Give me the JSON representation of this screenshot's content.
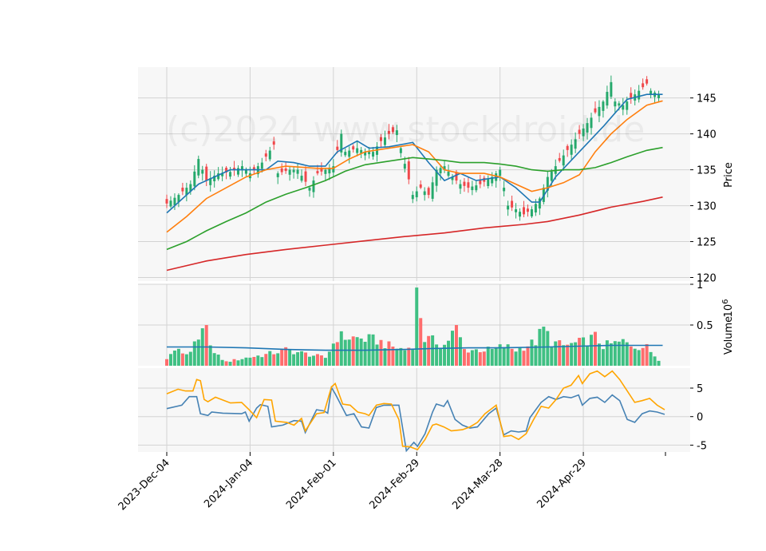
{
  "watermark": "(c)2024 www.stockdroid.de",
  "colors": {
    "up": "#26a96c",
    "down": "#f0484b",
    "up_vol": "#3fc083",
    "down_vol": "#ff6d6d",
    "ma_fast": "#1f77b4",
    "ma_orange": "#ff7f0e",
    "ma_green": "#2ca02c",
    "ma_red": "#d62728",
    "vol_ma": "#1f77b4",
    "osc_blue": "#4682b4",
    "osc_orange": "#ffa500",
    "panel_bg": "#f7f7f7",
    "grid": "#d3d3d3"
  },
  "chart_data": [
    {
      "type": "candlestick",
      "panel": "price",
      "ylabel": "Price",
      "ylim": [
        119.5,
        149.3
      ],
      "yticks": [
        120,
        125,
        130,
        135,
        140,
        145
      ],
      "x_ticks": [
        {
          "index": 0,
          "label": "2023-Dec-04"
        },
        {
          "index": 21,
          "label": "2024-Jan-04"
        },
        {
          "index": 42,
          "label": "2024-Feb-01"
        },
        {
          "index": 63,
          "label": "2024-Feb-29"
        },
        {
          "index": 84,
          "label": "2024-Mar-28"
        },
        {
          "index": 105,
          "label": "2024-Apr-29"
        }
      ],
      "grid": true,
      "ohlc": [],
      "moving_averages": [
        {
          "color": "ma_fast",
          "points": [
            [
              0,
              129
            ],
            [
              8,
              133
            ],
            [
              16,
              135
            ],
            [
              25,
              135
            ],
            [
              28,
              136.2
            ],
            [
              32,
              136
            ],
            [
              36,
              135.5
            ],
            [
              40,
              135.5
            ],
            [
              43,
              137.5
            ],
            [
              48,
              139
            ],
            [
              51,
              138
            ],
            [
              56,
              138.2
            ],
            [
              62,
              138.8
            ],
            [
              66,
              136
            ],
            [
              70,
              133.5
            ],
            [
              74,
              134.5
            ],
            [
              78,
              133.5
            ],
            [
              84,
              134
            ],
            [
              88,
              132.5
            ],
            [
              92,
              130.5
            ],
            [
              94,
              130.5
            ],
            [
              98,
              134
            ],
            [
              104,
              137.5
            ],
            [
              110,
              141
            ],
            [
              116,
              144.8
            ],
            [
              121,
              145.5
            ],
            [
              125,
              145.5
            ]
          ]
        },
        {
          "color": "ma_orange",
          "points": [
            [
              0,
              126.3
            ],
            [
              5,
              128.5
            ],
            [
              10,
              131
            ],
            [
              15,
              132.5
            ],
            [
              20,
              134
            ],
            [
              25,
              135
            ],
            [
              30,
              135.5
            ],
            [
              38,
              135.2
            ],
            [
              42,
              135.2
            ],
            [
              46,
              136.5
            ],
            [
              50,
              137.5
            ],
            [
              56,
              138
            ],
            [
              62,
              138.5
            ],
            [
              66,
              137.5
            ],
            [
              70,
              135
            ],
            [
              74,
              134.5
            ],
            [
              80,
              134.5
            ],
            [
              84,
              134
            ],
            [
              88,
              133
            ],
            [
              92,
              132
            ],
            [
              96,
              132.5
            ],
            [
              100,
              133.2
            ],
            [
              104,
              134.3
            ],
            [
              108,
              137.5
            ],
            [
              112,
              140
            ],
            [
              116,
              142
            ],
            [
              121,
              144
            ],
            [
              125,
              144.6
            ]
          ]
        },
        {
          "color": "ma_green",
          "points": [
            [
              0,
              123.9
            ],
            [
              5,
              125
            ],
            [
              10,
              126.5
            ],
            [
              15,
              127.8
            ],
            [
              20,
              129
            ],
            [
              25,
              130.5
            ],
            [
              30,
              131.6
            ],
            [
              35,
              132.5
            ],
            [
              40,
              133.5
            ],
            [
              45,
              134.8
            ],
            [
              50,
              135.7
            ],
            [
              56,
              136.2
            ],
            [
              62,
              136.7
            ],
            [
              66,
              136.5
            ],
            [
              70,
              136.3
            ],
            [
              74,
              136
            ],
            [
              80,
              136
            ],
            [
              84,
              135.8
            ],
            [
              88,
              135.5
            ],
            [
              92,
              135
            ],
            [
              96,
              134.8
            ],
            [
              100,
              135
            ],
            [
              104,
              135
            ],
            [
              108,
              135.3
            ],
            [
              112,
              136
            ],
            [
              116,
              136.8
            ],
            [
              121,
              137.7
            ],
            [
              125,
              138.1
            ]
          ]
        },
        {
          "color": "ma_red",
          "points": [
            [
              0,
              121
            ],
            [
              10,
              122.3
            ],
            [
              20,
              123.2
            ],
            [
              30,
              123.9
            ],
            [
              40,
              124.5
            ],
            [
              50,
              125.1
            ],
            [
              60,
              125.7
            ],
            [
              70,
              126.2
            ],
            [
              80,
              126.9
            ],
            [
              90,
              127.4
            ],
            [
              96,
              127.8
            ],
            [
              104,
              128.7
            ],
            [
              112,
              129.8
            ],
            [
              120,
              130.6
            ],
            [
              125,
              131.2
            ]
          ]
        }
      ]
    },
    {
      "type": "bar",
      "panel": "volume",
      "ylabel": "Volume",
      "yunit": "10^6",
      "ylim": [
        0,
        1.0
      ],
      "yticks": [
        0.5,
        1.0
      ],
      "volume": [],
      "volume_ma": [
        [
          0,
          0.23
        ],
        [
          10,
          0.23
        ],
        [
          20,
          0.22
        ],
        [
          30,
          0.2
        ],
        [
          40,
          0.19
        ],
        [
          50,
          0.19
        ],
        [
          60,
          0.2
        ],
        [
          66,
          0.21
        ],
        [
          76,
          0.22
        ],
        [
          84,
          0.22
        ],
        [
          96,
          0.23
        ],
        [
          104,
          0.24
        ],
        [
          112,
          0.25
        ],
        [
          125,
          0.25
        ]
      ]
    },
    {
      "type": "line",
      "panel": "oscillator",
      "ylim": [
        -6.2,
        8.5
      ],
      "yticks": [
        -5,
        0,
        5
      ],
      "series": [
        {
          "color": "osc_blue",
          "points": [
            [
              0,
              1.4
            ],
            [
              4,
              2.0
            ],
            [
              6,
              3.5
            ],
            [
              8,
              3.5
            ],
            [
              9,
              0.5
            ],
            [
              11,
              0.2
            ],
            [
              12,
              0.8
            ],
            [
              15,
              0.6
            ],
            [
              20,
              0.5
            ],
            [
              21,
              0.8
            ],
            [
              22,
              -0.8
            ],
            [
              24,
              1.5
            ],
            [
              25,
              2.1
            ],
            [
              27,
              1.8
            ],
            [
              28,
              -1.8
            ],
            [
              31,
              -1.5
            ],
            [
              34,
              -0.7
            ],
            [
              36,
              -0.8
            ],
            [
              37,
              -2.8
            ],
            [
              40,
              1.2
            ],
            [
              42,
              1.0
            ],
            [
              43,
              0.6
            ],
            [
              44,
              5.1
            ],
            [
              45,
              4.0
            ],
            [
              48,
              0.2
            ],
            [
              50,
              0.5
            ],
            [
              52,
              -1.8
            ],
            [
              54,
              -2.0
            ],
            [
              56,
              1.6
            ],
            [
              58,
              2.0
            ],
            [
              62,
              2.0
            ],
            [
              64,
              -6.0
            ],
            [
              66,
              -4.5
            ],
            [
              67,
              -5.2
            ],
            [
              69,
              -3.0
            ],
            [
              71,
              0.8
            ],
            [
              72,
              2.2
            ],
            [
              73,
              2.0
            ],
            [
              74,
              1.8
            ],
            [
              75,
              2.8
            ],
            [
              77,
              -0.5
            ],
            [
              79,
              -1.5
            ],
            [
              81,
              -2.0
            ],
            [
              83,
              -1.8
            ],
            [
              86,
              0.5
            ],
            [
              88,
              1.5
            ],
            [
              90,
              -3.2
            ],
            [
              92,
              -2.5
            ],
            [
              94,
              -2.7
            ],
            [
              96,
              -2.5
            ],
            [
              97,
              -0.2
            ],
            [
              100,
              2.5
            ],
            [
              102,
              3.5
            ],
            [
              104,
              3.0
            ],
            [
              106,
              3.5
            ],
            [
              108,
              3.3
            ],
            [
              110,
              3.8
            ],
            [
              111,
              2.0
            ],
            [
              113,
              3.2
            ],
            [
              115,
              3.4
            ],
            [
              117,
              2.5
            ],
            [
              119,
              3.8
            ],
            [
              121,
              2.8
            ],
            [
              123,
              -0.5
            ],
            [
              125,
              -1.0
            ],
            [
              127,
              0.5
            ],
            [
              129,
              1.0
            ],
            [
              131,
              0.8
            ],
            [
              133,
              0.4
            ]
          ]
        },
        {
          "color": "osc_orange",
          "points": [
            [
              0,
              4.0
            ],
            [
              3,
              4.8
            ],
            [
              5,
              4.5
            ],
            [
              7,
              4.5
            ],
            [
              8,
              6.5
            ],
            [
              9,
              6.3
            ],
            [
              10,
              3.0
            ],
            [
              11,
              2.6
            ],
            [
              13,
              3.4
            ],
            [
              15,
              2.9
            ],
            [
              17,
              2.4
            ],
            [
              20,
              2.5
            ],
            [
              22,
              1.2
            ],
            [
              24,
              -0.2
            ],
            [
              26,
              3.0
            ],
            [
              28,
              2.9
            ],
            [
              29,
              -0.8
            ],
            [
              32,
              -1.0
            ],
            [
              34,
              -1.5
            ],
            [
              36,
              -0.3
            ],
            [
              37,
              -2.5
            ],
            [
              40,
              0.5
            ],
            [
              42,
              0.7
            ],
            [
              44,
              5.2
            ],
            [
              45,
              5.8
            ],
            [
              47,
              2.2
            ],
            [
              49,
              2.0
            ],
            [
              51,
              0.8
            ],
            [
              53,
              0.5
            ],
            [
              54,
              0.2
            ],
            [
              56,
              2.0
            ],
            [
              58,
              2.3
            ],
            [
              60,
              2.2
            ],
            [
              62,
              -0.5
            ],
            [
              63,
              -5.2
            ],
            [
              65,
              -5.3
            ],
            [
              67,
              -5.8
            ],
            [
              69,
              -4.0
            ],
            [
              71,
              -1.5
            ],
            [
              72,
              -1.3
            ],
            [
              74,
              -1.8
            ],
            [
              76,
              -2.5
            ],
            [
              79,
              -2.3
            ],
            [
              81,
              -1.8
            ],
            [
              83,
              -1.0
            ],
            [
              85,
              0.5
            ],
            [
              88,
              2.0
            ],
            [
              90,
              -3.5
            ],
            [
              92,
              -3.3
            ],
            [
              94,
              -4.0
            ],
            [
              96,
              -3.0
            ],
            [
              98,
              -0.5
            ],
            [
              100,
              1.8
            ],
            [
              102,
              1.5
            ],
            [
              104,
              3.0
            ],
            [
              106,
              5.0
            ],
            [
              108,
              5.5
            ],
            [
              110,
              7.2
            ],
            [
              111,
              5.8
            ],
            [
              113,
              7.5
            ],
            [
              115,
              8.0
            ],
            [
              117,
              7.0
            ],
            [
              119,
              8.0
            ],
            [
              121,
              6.5
            ],
            [
              123,
              4.5
            ],
            [
              125,
              2.5
            ],
            [
              127,
              2.8
            ],
            [
              129,
              3.2
            ],
            [
              131,
              2.0
            ],
            [
              133,
              1.2
            ]
          ]
        }
      ]
    }
  ]
}
